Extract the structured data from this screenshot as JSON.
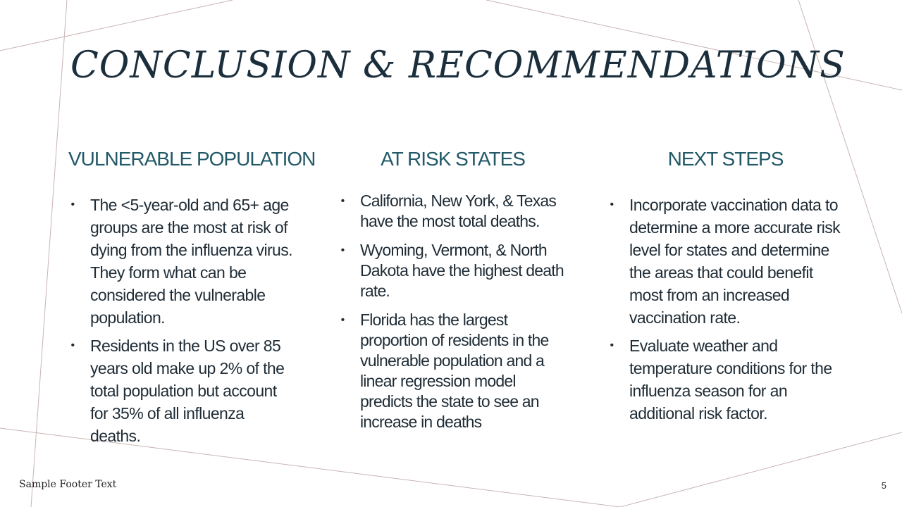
{
  "slide": {
    "title": "CONCLUSION & RECOMMENDATIONS",
    "footer_text": "Sample Footer Text",
    "page_number": "5",
    "colors": {
      "title": "#1b2e3c",
      "heading": "#235a68",
      "body": "#1f2c36",
      "decorative_lines": "#c9b4b4"
    }
  },
  "columns": [
    {
      "heading": "VULNERABLE POPULATION",
      "bullets": [
        "The <5-year-old and 65+ age groups are the most at risk of dying from the influenza virus. They form what can be considered the vulnerable population.",
        "Residents in the US over 85 years old make up 2% of the total population but account for 35% of all influenza deaths."
      ]
    },
    {
      "heading": "AT RISK STATES",
      "bullets": [
        "California, New York, & Texas have the most total deaths.",
        "Wyoming, Vermont, & North Dakota have the highest death rate.",
        "Florida has the largest proportion of residents in the vulnerable population and a linear regression model predicts the state to see an increase in deaths"
      ]
    },
    {
      "heading": "NEXT STEPS",
      "bullets": [
        "Incorporate vaccination data to determine a more accurate risk level for states and determine the areas that could benefit most from an increased vaccination rate.",
        "Evaluate weather and temperature conditions for the influenza season for an additional risk factor."
      ]
    }
  ]
}
